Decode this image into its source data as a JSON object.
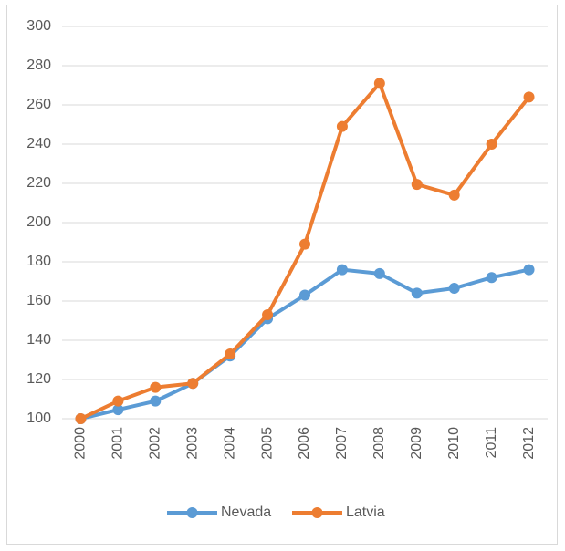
{
  "chart_data": {
    "type": "line",
    "categories": [
      "2000",
      "2001",
      "2002",
      "2003",
      "2004",
      "2005",
      "2006",
      "2007",
      "2008",
      "2009",
      "2010",
      "2011",
      "2012"
    ],
    "series": [
      {
        "name": "Nevada",
        "color": "#5b9bd5",
        "values": [
          100,
          104.6,
          109,
          118,
          132,
          151,
          163,
          176,
          174,
          164,
          166.5,
          172,
          176
        ]
      },
      {
        "name": "Latvia",
        "color": "#ed7d31",
        "values": [
          100,
          109,
          116,
          118,
          133,
          153,
          189,
          249,
          271,
          219.5,
          214,
          240,
          264
        ]
      }
    ],
    "ylim": [
      100,
      300
    ],
    "yticks": [
      100,
      120,
      140,
      160,
      180,
      200,
      220,
      240,
      260,
      280,
      300
    ],
    "grid": true,
    "legend": "bottom"
  }
}
